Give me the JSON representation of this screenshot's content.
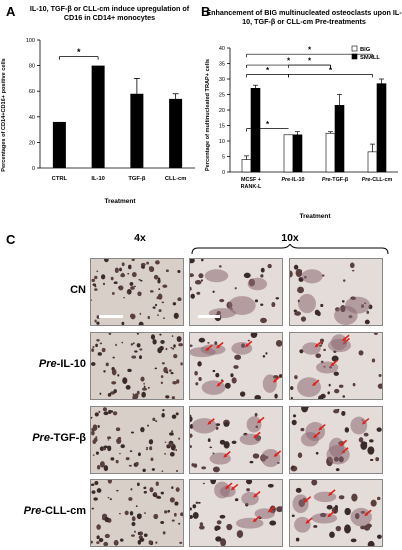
{
  "panels": {
    "A": {
      "letter": "A",
      "title": "IL-10, TGF-β or CLL-cm induce upregulation of CD16 in CD14+ monocytes",
      "ylabel": "Percentages of CD14+CD16+ positive cells",
      "xlabel": "Treatment",
      "sig": "*"
    },
    "B": {
      "letter": "B",
      "title": "Enhancement of BIG multinucleated osteoclasts upon IL-10, TGF-β or CLL-cm Pre-treatments",
      "ylabel": "Percentage of multinucleated TRAP+ cells",
      "xlabel": "Treatment",
      "legend_big": "BIG",
      "legend_small": "SMALL",
      "sig": "*"
    },
    "C": {
      "letter": "C",
      "col_4x": "4x",
      "col_10x": "10x",
      "rows": [
        {
          "prefix": "",
          "name": "CN"
        },
        {
          "prefix": "Pre",
          "name": "-IL-10"
        },
        {
          "prefix": "Pre",
          "name": "-TGF-β"
        },
        {
          "prefix": "Pre",
          "name": "-CLL-cm"
        }
      ]
    }
  },
  "chart_data": [
    {
      "type": "bar",
      "title": "IL-10, TGF-β or CLL-cm induce upregulation of CD16 in CD14+ monocytes",
      "xlabel": "Treatment",
      "ylabel": "Percentages of CD14+CD16+ positive cells",
      "categories": [
        "CTRL",
        "IL-10",
        "TGF-β",
        "CLL-cm"
      ],
      "values": [
        36,
        80,
        58,
        54
      ],
      "errors": [
        0,
        0,
        12,
        4
      ],
      "ylim": [
        0,
        100
      ],
      "yticks": [
        0,
        20,
        40,
        60,
        80,
        100
      ],
      "color": "#000000"
    },
    {
      "type": "bar",
      "title": "Enhancement of BIG multinucleated osteoclasts upon IL-10, TGF-β or CLL-cm Pre-treatments",
      "xlabel": "Treatment",
      "ylabel": "Percentage of multinucleated TRAP+ cells",
      "categories": [
        "MCSF + RANK-L",
        "Pre-IL-10",
        "Pre-TGF-β",
        "Pre-CLL-cm"
      ],
      "series": [
        {
          "name": "BIG",
          "values": [
            4,
            12,
            12.5,
            6.5
          ],
          "errors": [
            1.2,
            0,
            0.5,
            2.5
          ],
          "color": "#ffffff"
        },
        {
          "name": "SMALL",
          "values": [
            27,
            12,
            21.5,
            28.5
          ],
          "errors": [
            1,
            1,
            3.5,
            1.5
          ],
          "color": "#000000"
        }
      ],
      "ylim": [
        0,
        40
      ],
      "yticks": [
        0,
        5,
        10,
        15,
        20,
        25,
        30,
        35,
        40
      ],
      "legend": "top-right"
    }
  ]
}
